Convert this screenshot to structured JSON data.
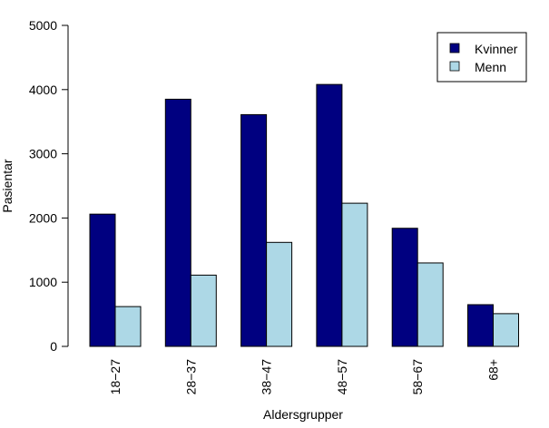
{
  "chart_data": {
    "type": "bar",
    "title": "",
    "xlabel": "Aldersgrupper",
    "ylabel": "Pasientar",
    "categories": [
      "18−27",
      "28−37",
      "38−47",
      "48−57",
      "58−67",
      "68+"
    ],
    "series": [
      {
        "name": "Kvinner",
        "color": "#000080",
        "values": [
          2060,
          3850,
          3610,
          4080,
          1840,
          650
        ]
      },
      {
        "name": "Menn",
        "color": "#add8e6",
        "values": [
          620,
          1110,
          1620,
          2230,
          1300,
          510
        ]
      }
    ],
    "ylim": [
      0,
      5000
    ],
    "yticks": [
      0,
      1000,
      2000,
      3000,
      4000,
      5000
    ],
    "grid": false,
    "legend_position": "top-right"
  }
}
